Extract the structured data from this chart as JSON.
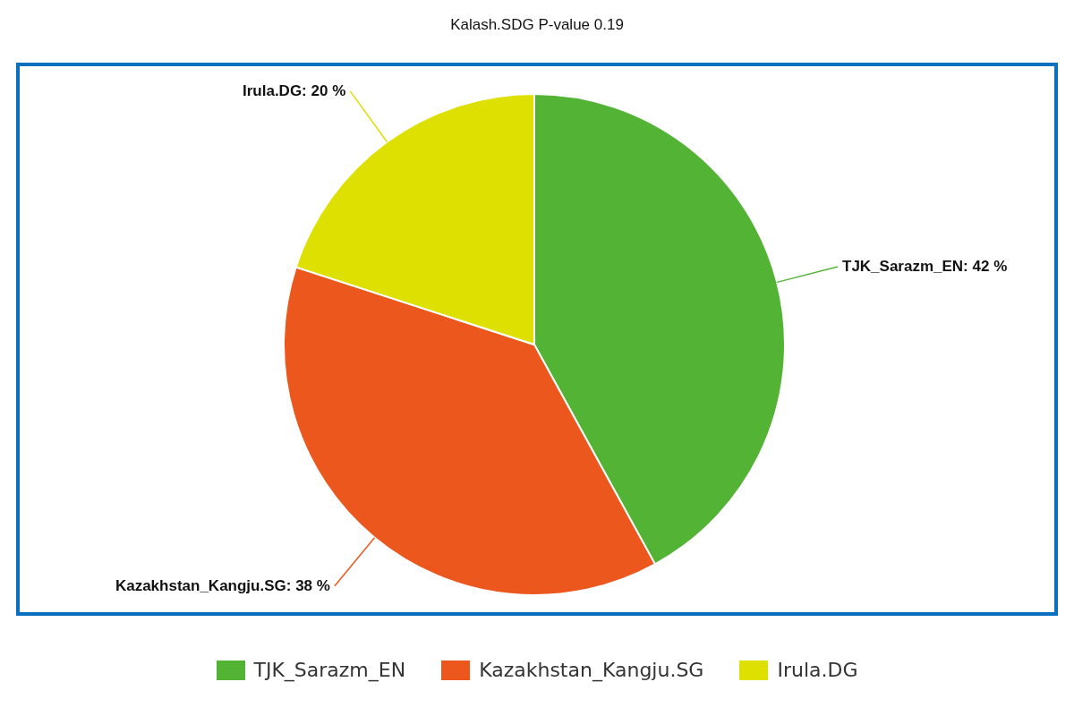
{
  "chart_data": {
    "type": "pie",
    "title": "Kalash.SDG P-value 0.19",
    "categories": [
      "TJK_Sarazm_EN",
      "Kazakhstan_Kangju.SG",
      "Irula.DG"
    ],
    "values": [
      42,
      38,
      20
    ],
    "colors": [
      "#52b335",
      "#eb571d",
      "#dde000"
    ],
    "value_labels": [
      "TJK_Sarazm_EN: 42 %",
      "Kazakhstan_Kangju.SG: 38 %",
      "Irula.DG: 20 %"
    ],
    "legend": "bottom"
  }
}
